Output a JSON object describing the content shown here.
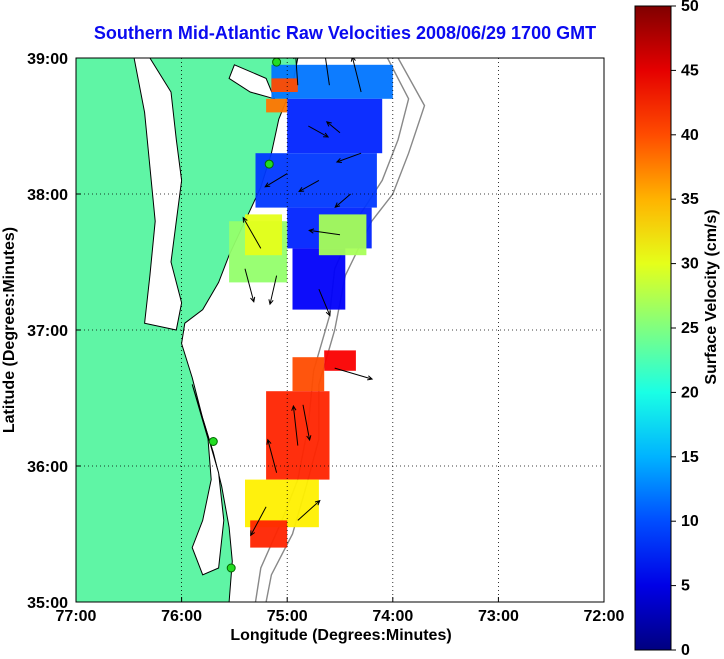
{
  "chart_data": {
    "type": "map-vector-field",
    "title": "Southern Mid-Atlantic Raw Velocities 2008/06/29 1700 GMT",
    "xlabel": "Longitude (Degrees:Minutes)",
    "ylabel": "Latitude (Degrees:Minutes)",
    "xlim": [
      -77,
      -72
    ],
    "ylim": [
      35,
      39
    ],
    "x_ticks": [
      {
        "value": -77,
        "label": "77:00"
      },
      {
        "value": -76,
        "label": "76:00"
      },
      {
        "value": -75,
        "label": "75:00"
      },
      {
        "value": -74,
        "label": "74:00"
      },
      {
        "value": -73,
        "label": "73:00"
      },
      {
        "value": -72,
        "label": "72:00"
      }
    ],
    "y_ticks": [
      {
        "value": 35,
        "label": "35:00"
      },
      {
        "value": 36,
        "label": "36:00"
      },
      {
        "value": 37,
        "label": "37:00"
      },
      {
        "value": 38,
        "label": "38:00"
      },
      {
        "value": 39,
        "label": "39:00"
      }
    ],
    "grid": true,
    "colorbar": {
      "label": "Surface Velocity (cm/s)",
      "min": 0,
      "max": 50,
      "ticks": [
        {
          "value": 0,
          "label": "0"
        },
        {
          "value": 5,
          "label": "5"
        },
        {
          "value": 10,
          "label": "10"
        },
        {
          "value": 15,
          "label": "15"
        },
        {
          "value": 20,
          "label": "20"
        },
        {
          "value": 25,
          "label": "25"
        },
        {
          "value": 30,
          "label": "30"
        },
        {
          "value": 35,
          "label": "35"
        },
        {
          "value": 40,
          "label": "40"
        },
        {
          "value": 45,
          "label": "45"
        },
        {
          "value": 50,
          "label": "50"
        }
      ],
      "colormap": "jet"
    },
    "colors": {
      "land": "#5ff5a5",
      "coastline": "#000000",
      "bathymetry": "#888888",
      "stations": "#22dd22",
      "title": "#0a0af0"
    },
    "velocity_regions": [
      {
        "name": "north",
        "lon": [
          -75.15,
          -74.0
        ],
        "lat": [
          38.7,
          38.95
        ],
        "speed": 12
      },
      {
        "name": "north-a",
        "lon": [
          -75.0,
          -74.1
        ],
        "lat": [
          38.3,
          38.7
        ],
        "speed": 8
      },
      {
        "name": "north-b",
        "lon": [
          -75.3,
          -74.15
        ],
        "lat": [
          37.9,
          38.3
        ],
        "speed": 9
      },
      {
        "name": "north-c",
        "lon": [
          -75.0,
          -74.2
        ],
        "lat": [
          37.6,
          37.9
        ],
        "speed": 8
      },
      {
        "name": "north-d",
        "lon": [
          -74.95,
          -74.45
        ],
        "lat": [
          37.15,
          37.6
        ],
        "speed": 6
      },
      {
        "name": "north-e",
        "lon": [
          -75.15,
          -74.9
        ],
        "lat": [
          38.75,
          38.85
        ],
        "speed": 40
      },
      {
        "name": "north-f",
        "lon": [
          -75.2,
          -75.0
        ],
        "lat": [
          38.6,
          38.7
        ],
        "speed": 38
      },
      {
        "name": "west",
        "lon": [
          -75.55,
          -75.0
        ],
        "lat": [
          37.35,
          37.8
        ],
        "speed": 26
      },
      {
        "name": "west-b",
        "lon": [
          -75.4,
          -75.05
        ],
        "lat": [
          37.55,
          37.85
        ],
        "speed": 30
      },
      {
        "name": "east",
        "lon": [
          -74.7,
          -74.25
        ],
        "lat": [
          37.55,
          37.85
        ],
        "speed": 27
      },
      {
        "name": "south-a",
        "lon": [
          -74.65,
          -74.35
        ],
        "lat": [
          36.7,
          36.85
        ],
        "speed": 44
      },
      {
        "name": "south-b",
        "lon": [
          -74.95,
          -74.65
        ],
        "lat": [
          36.55,
          36.8
        ],
        "speed": 40
      },
      {
        "name": "south-c",
        "lon": [
          -75.2,
          -74.6
        ],
        "lat": [
          35.9,
          36.55
        ],
        "speed": 42
      },
      {
        "name": "south-d",
        "lon": [
          -75.4,
          -74.7
        ],
        "lat": [
          35.55,
          35.9
        ],
        "speed": 32
      },
      {
        "name": "south-e",
        "lon": [
          -75.35,
          -75.0
        ],
        "lat": [
          35.4,
          35.6
        ],
        "speed": 42
      }
    ],
    "vectors": [
      {
        "lon": -74.9,
        "lat": 38.8,
        "u": -2,
        "v": 28
      },
      {
        "lon": -74.6,
        "lat": 38.8,
        "u": -5,
        "v": 35
      },
      {
        "lon": -74.3,
        "lat": 38.75,
        "u": -8,
        "v": 32
      },
      {
        "lon": -74.8,
        "lat": 38.5,
        "u": 18,
        "v": -10
      },
      {
        "lon": -74.5,
        "lat": 38.45,
        "u": -12,
        "v": 10
      },
      {
        "lon": -74.3,
        "lat": 38.3,
        "u": -22,
        "v": -8
      },
      {
        "lon": -75.0,
        "lat": 38.15,
        "u": -20,
        "v": -12
      },
      {
        "lon": -74.7,
        "lat": 38.1,
        "u": -18,
        "v": -10
      },
      {
        "lon": -74.4,
        "lat": 38.0,
        "u": -14,
        "v": -12
      },
      {
        "lon": -75.25,
        "lat": 37.6,
        "u": -16,
        "v": 28
      },
      {
        "lon": -75.4,
        "lat": 37.45,
        "u": 8,
        "v": -30
      },
      {
        "lon": -75.1,
        "lat": 37.4,
        "u": -6,
        "v": -26
      },
      {
        "lon": -74.5,
        "lat": 37.7,
        "u": -28,
        "v": 4
      },
      {
        "lon": -74.7,
        "lat": 37.3,
        "u": 10,
        "v": -24
      },
      {
        "lon": -74.55,
        "lat": 36.72,
        "u": 34,
        "v": -10
      },
      {
        "lon": -74.85,
        "lat": 36.45,
        "u": 6,
        "v": -32
      },
      {
        "lon": -74.9,
        "lat": 36.15,
        "u": -4,
        "v": 36
      },
      {
        "lon": -75.1,
        "lat": 35.95,
        "u": -8,
        "v": 30
      },
      {
        "lon": -75.2,
        "lat": 35.7,
        "u": -14,
        "v": -26
      },
      {
        "lon": -74.9,
        "lat": 35.6,
        "u": 20,
        "v": 18
      }
    ],
    "stations": [
      {
        "lon": -75.1,
        "lat": 38.97
      },
      {
        "lon": -75.17,
        "lat": 38.22
      },
      {
        "lon": -75.7,
        "lat": 36.18
      },
      {
        "lon": -75.53,
        "lat": 35.25
      }
    ]
  }
}
